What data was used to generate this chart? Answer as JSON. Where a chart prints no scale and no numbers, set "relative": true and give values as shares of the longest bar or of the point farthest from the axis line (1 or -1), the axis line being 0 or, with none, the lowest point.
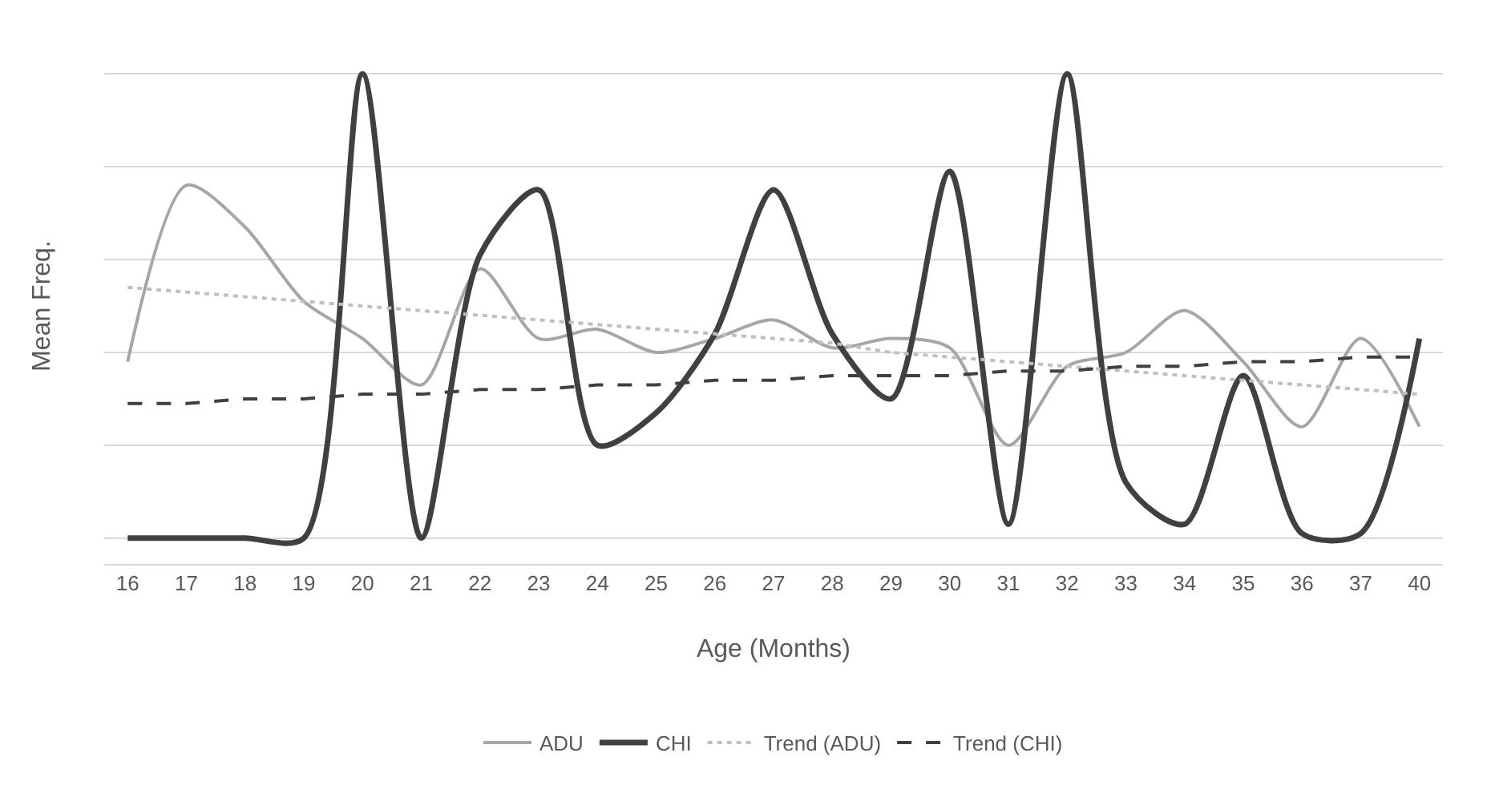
{
  "chart_data": {
    "type": "line",
    "relative": true,
    "xlabel": "Age (Months)",
    "ylabel": "Mean Freq.",
    "categories": [
      "16",
      "17",
      "18",
      "19",
      "20",
      "21",
      "22",
      "23",
      "24",
      "25",
      "26",
      "27",
      "28",
      "29",
      "30",
      "31",
      "32",
      "33",
      "34",
      "35",
      "36",
      "37",
      "40"
    ],
    "grid": "y",
    "legend": "bottom",
    "marker": "none",
    "series": [
      {
        "name": "ADU",
        "color": "#a6a6a6",
        "line_style": "solid",
        "values": [
          0.38,
          0.76,
          0.67,
          0.51,
          0.43,
          0.33,
          0.58,
          0.43,
          0.45,
          0.4,
          0.43,
          0.47,
          0.41,
          0.43,
          0.41,
          0.2,
          0.37,
          0.4,
          0.49,
          0.38,
          0.24,
          0.43,
          0.24
        ]
      },
      {
        "name": "CHI",
        "color": "#404040",
        "line_style": "solid",
        "values": [
          0,
          0,
          0,
          0,
          1,
          0,
          0.61,
          0.75,
          0.2,
          0.27,
          0.44,
          0.75,
          0.44,
          0.3,
          0.79,
          0.03,
          1,
          0.12,
          0.03,
          0.35,
          0.01,
          0.01,
          0.43
        ]
      },
      {
        "name": "Trend (ADU)",
        "color": "#bfbfbf",
        "line_style": "dotted",
        "values": [
          0.54,
          0.53,
          0.52,
          0.51,
          0.5,
          0.49,
          0.48,
          0.47,
          0.46,
          0.45,
          0.44,
          0.43,
          0.42,
          0.4,
          0.39,
          0.38,
          0.37,
          0.36,
          0.35,
          0.34,
          0.33,
          0.32,
          0.31
        ]
      },
      {
        "name": "Trend (CHI)",
        "color": "#404040",
        "line_style": "dashed",
        "values": [
          0.29,
          0.29,
          0.3,
          0.3,
          0.31,
          0.31,
          0.32,
          0.32,
          0.33,
          0.33,
          0.34,
          0.34,
          0.35,
          0.35,
          0.35,
          0.36,
          0.36,
          0.37,
          0.37,
          0.38,
          0.38,
          0.39,
          0.39
        ]
      }
    ]
  }
}
